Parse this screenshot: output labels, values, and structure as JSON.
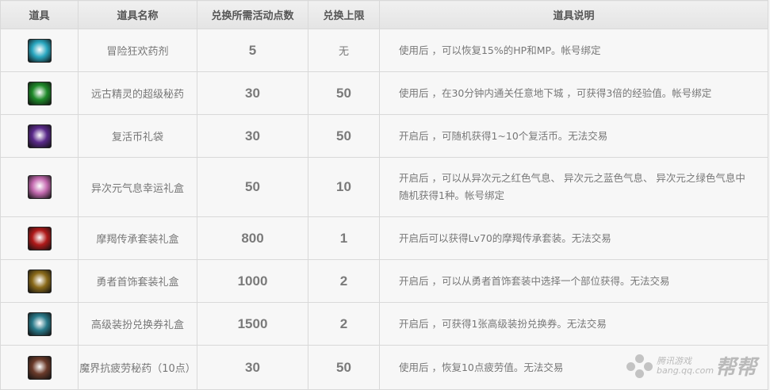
{
  "headers": [
    "道具",
    "道具名称",
    "兑换所需活动点数",
    "兑换上限",
    "道具说明"
  ],
  "rows": [
    {
      "icon": "potion-icon",
      "color": "#2aa7c0",
      "name": "冒险狂欢药剂",
      "points": "5",
      "limit": "无",
      "desc": "使用后 ，可以恢复15%的HP和MP。帐号绑定"
    },
    {
      "icon": "exp-potion-icon",
      "color": "#1f8a2a",
      "name": "远古精灵的超级秘药",
      "points": "30",
      "limit": "50",
      "desc": "使用后 ，在30分钟内通关任意地下城 ，可获得3倍的经验值。帐号绑定"
    },
    {
      "icon": "coin-bag-icon",
      "color": "#5a2a8a",
      "name": "复活币礼袋",
      "points": "30",
      "limit": "50",
      "desc": "开启后 ，可随机获得1~10个复活币。无法交易"
    },
    {
      "icon": "crystal-box-icon",
      "color": "#c46ab0",
      "name": "异次元气息幸运礼盒",
      "points": "50",
      "limit": "10",
      "desc": "开启后 ，可以从异次元之红色气息、 异次元之蓝色气息、 异次元之绿色气息中随机获得1种。帐号绑定"
    },
    {
      "icon": "red-gift-box-icon",
      "color": "#b01a1a",
      "name": "摩羯传承套装礼盒",
      "points": "800",
      "limit": "1",
      "desc": "开启后可以获得Lv70的摩羯传承套装。无法交易"
    },
    {
      "icon": "gold-chest-icon",
      "color": "#8a6a1a",
      "name": "勇者首饰套装礼盒",
      "points": "1000",
      "limit": "2",
      "desc": "开启后 ，可以从勇者首饰套装中选择一个部位获得。无法交易"
    },
    {
      "icon": "coupon-icon",
      "color": "#2a7a8a",
      "name": "高级装扮兑换券礼盒",
      "points": "1500",
      "limit": "2",
      "desc": "开启后 ，可获得1张高级装扮兑换券。无法交易"
    },
    {
      "icon": "bottle-icon",
      "color": "#6a3a2a",
      "name": "魔界抗疲劳秘药（10点）",
      "points": "30",
      "limit": "50",
      "desc": "使用后 ，恢复10点疲劳值。无法交易"
    }
  ],
  "watermark": {
    "text": "腾讯游戏",
    "url": "bang.qq.com",
    "brand": "帮帮"
  }
}
